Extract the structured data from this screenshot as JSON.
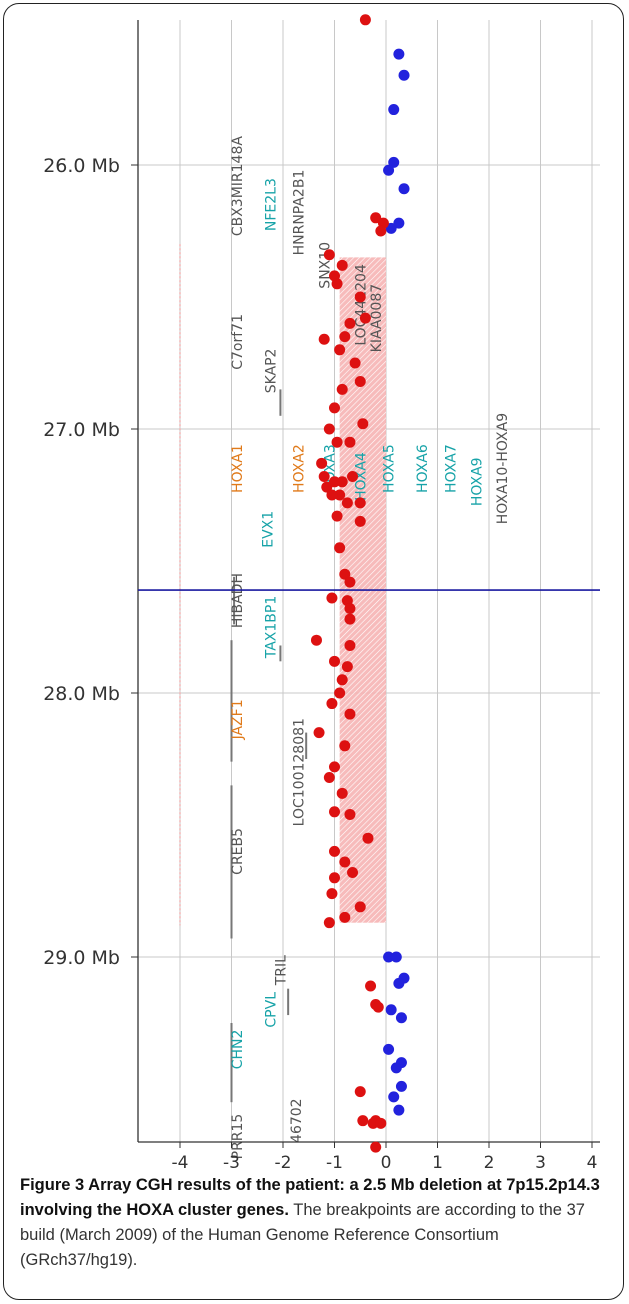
{
  "chart_data": {
    "type": "scatter",
    "title": "",
    "xlabel": "",
    "ylabel": "",
    "xlim": [
      -4.4,
      4.2
    ],
    "ylim_mb": [
      25.4,
      29.75
    ],
    "x_ticks": [
      -4,
      -3,
      -2,
      -1,
      0,
      1,
      2,
      3,
      4
    ],
    "x_tick_labels": [
      "-4",
      "-3",
      "-2",
      "-1",
      "0",
      "1",
      "2",
      "3",
      "4"
    ],
    "y_ticks": [
      26.0,
      27.0,
      28.0,
      29.0
    ],
    "y_tick_labels": [
      "26.0 Mb",
      "27.0 Mb",
      "28.0 Mb",
      "29.0 Mb"
    ],
    "grid": true,
    "colors": {
      "normal_probe": "#2222dd",
      "deleted_probe": "#dd1111",
      "deletion_region": "#f08a8a",
      "marker_line": "#1a1aa0",
      "gene_orange": "#e07a1a",
      "gene_teal": "#17a3a8",
      "gene_gray": "#555555",
      "threshold_line": "#f5b5b5"
    },
    "deletion_region": {
      "x_from": -0.9,
      "x_to": 0.0,
      "y_from_mb": 26.35,
      "y_to_mb": 28.87
    },
    "threshold_x": -4.0,
    "marker_line_mb": 27.61,
    "series": [
      {
        "color_key": "normal_probe",
        "points": [
          [
            0.25,
            25.58
          ],
          [
            0.35,
            25.66
          ],
          [
            0.15,
            25.79
          ],
          [
            0.15,
            25.99
          ],
          [
            0.05,
            26.02
          ],
          [
            0.35,
            26.09
          ],
          [
            0.25,
            26.22
          ],
          [
            0.1,
            26.24
          ],
          [
            0.05,
            29.0
          ],
          [
            0.2,
            29.0
          ],
          [
            0.35,
            29.08
          ],
          [
            0.25,
            29.1
          ],
          [
            0.1,
            29.2
          ],
          [
            0.3,
            29.23
          ],
          [
            0.05,
            29.35
          ],
          [
            0.3,
            29.4
          ],
          [
            0.2,
            29.42
          ],
          [
            0.3,
            29.49
          ],
          [
            0.15,
            29.53
          ],
          [
            0.25,
            29.58
          ]
        ]
      },
      {
        "color_key": "deleted_probe",
        "points": [
          [
            -0.4,
            25.45
          ],
          [
            -0.2,
            26.2
          ],
          [
            -0.05,
            26.22
          ],
          [
            -0.1,
            26.25
          ],
          [
            -1.1,
            26.34
          ],
          [
            -0.85,
            26.38
          ],
          [
            -1.0,
            26.42
          ],
          [
            -0.95,
            26.45
          ],
          [
            -0.5,
            26.5
          ],
          [
            -0.4,
            26.58
          ],
          [
            -0.7,
            26.6
          ],
          [
            -0.8,
            26.65
          ],
          [
            -1.2,
            26.66
          ],
          [
            -0.9,
            26.7
          ],
          [
            -0.6,
            26.75
          ],
          [
            -0.5,
            26.82
          ],
          [
            -0.85,
            26.85
          ],
          [
            -1.0,
            26.92
          ],
          [
            -0.45,
            26.98
          ],
          [
            -1.1,
            27.0
          ],
          [
            -0.95,
            27.05
          ],
          [
            -0.7,
            27.05
          ],
          [
            -1.25,
            27.13
          ],
          [
            -1.2,
            27.18
          ],
          [
            -1.0,
            27.2
          ],
          [
            -0.85,
            27.2
          ],
          [
            -0.65,
            27.18
          ],
          [
            -1.15,
            27.22
          ],
          [
            -0.9,
            27.25
          ],
          [
            -0.75,
            27.28
          ],
          [
            -1.05,
            27.25
          ],
          [
            -0.5,
            27.28
          ],
          [
            -0.95,
            27.33
          ],
          [
            -0.5,
            27.35
          ],
          [
            -0.9,
            27.45
          ],
          [
            -0.8,
            27.55
          ],
          [
            -0.7,
            27.58
          ],
          [
            -1.05,
            27.64
          ],
          [
            -0.75,
            27.65
          ],
          [
            -0.7,
            27.68
          ],
          [
            -0.7,
            27.72
          ],
          [
            -1.35,
            27.8
          ],
          [
            -0.7,
            27.82
          ],
          [
            -1.0,
            27.88
          ],
          [
            -0.75,
            27.9
          ],
          [
            -0.85,
            27.95
          ],
          [
            -0.9,
            28.0
          ],
          [
            -1.05,
            28.04
          ],
          [
            -0.7,
            28.08
          ],
          [
            -1.3,
            28.15
          ],
          [
            -0.8,
            28.2
          ],
          [
            -1.0,
            28.28
          ],
          [
            -1.1,
            28.32
          ],
          [
            -0.85,
            28.38
          ],
          [
            -1.0,
            28.45
          ],
          [
            -0.7,
            28.46
          ],
          [
            -0.35,
            28.55
          ],
          [
            -1.0,
            28.6
          ],
          [
            -0.8,
            28.64
          ],
          [
            -1.0,
            28.7
          ],
          [
            -0.65,
            28.68
          ],
          [
            -1.05,
            28.76
          ],
          [
            -0.5,
            28.81
          ],
          [
            -0.8,
            28.85
          ],
          [
            -1.1,
            28.87
          ],
          [
            -0.3,
            29.11
          ],
          [
            -0.2,
            29.18
          ],
          [
            -0.15,
            29.19
          ],
          [
            -0.5,
            29.51
          ],
          [
            -0.45,
            29.62
          ],
          [
            -0.2,
            29.62
          ],
          [
            -0.25,
            29.63
          ],
          [
            -0.1,
            29.63
          ],
          [
            -0.2,
            29.72
          ]
        ]
      }
    ],
    "gene_labels": [
      {
        "text": "CBX3MIR148A",
        "x": -2.8,
        "y_mb": 26.08,
        "color_key": "gene_gray"
      },
      {
        "text": "NFE2L3",
        "x": -2.15,
        "y_mb": 26.15,
        "color_key": "gene_teal"
      },
      {
        "text": "HNRNPA2B1",
        "x": -1.6,
        "y_mb": 26.18,
        "color_key": "gene_gray"
      },
      {
        "text": "SNX10",
        "x": -1.1,
        "y_mb": 26.38,
        "color_key": "gene_gray"
      },
      {
        "text": "LOC441204",
        "x": -0.4,
        "y_mb": 26.53,
        "color_key": "gene_gray"
      },
      {
        "text": "KIAA0087",
        "x": -0.1,
        "y_mb": 26.58,
        "color_key": "gene_gray"
      },
      {
        "text": "C7orf71",
        "x": -2.8,
        "y_mb": 26.67,
        "color_key": "gene_gray"
      },
      {
        "text": "SKAP2",
        "x": -2.15,
        "y_mb": 26.78,
        "color_key": "gene_gray"
      },
      {
        "text": "HOXA1",
        "x": -2.8,
        "y_mb": 27.15,
        "color_key": "gene_orange"
      },
      {
        "text": "HOXA2",
        "x": -1.6,
        "y_mb": 27.15,
        "color_key": "gene_orange"
      },
      {
        "text": "HOXA3",
        "x": -1.0,
        "y_mb": 27.15,
        "color_key": "gene_teal"
      },
      {
        "text": "HOXA4",
        "x": -0.4,
        "y_mb": 27.18,
        "color_key": "gene_teal"
      },
      {
        "text": "HOXA5",
        "x": 0.15,
        "y_mb": 27.15,
        "color_key": "gene_teal"
      },
      {
        "text": "HOXA6",
        "x": 0.8,
        "y_mb": 27.15,
        "color_key": "gene_teal"
      },
      {
        "text": "HOXA7",
        "x": 1.35,
        "y_mb": 27.15,
        "color_key": "gene_teal"
      },
      {
        "text": "HOXA9",
        "x": 1.85,
        "y_mb": 27.2,
        "color_key": "gene_teal"
      },
      {
        "text": "HOXA10-HOXA9",
        "x": 2.35,
        "y_mb": 27.15,
        "color_key": "gene_gray"
      },
      {
        "text": "EVX1",
        "x": -2.2,
        "y_mb": 27.38,
        "color_key": "gene_teal"
      },
      {
        "text": "HIBADH",
        "x": -2.8,
        "y_mb": 27.65,
        "color_key": "gene_gray"
      },
      {
        "text": "TAX1BP1",
        "x": -2.15,
        "y_mb": 27.75,
        "color_key": "gene_teal"
      },
      {
        "text": "JAZF1",
        "x": -2.8,
        "y_mb": 28.1,
        "color_key": "gene_orange"
      },
      {
        "text": "LOC100128081",
        "x": -1.6,
        "y_mb": 28.3,
        "color_key": "gene_gray"
      },
      {
        "text": "CREB5",
        "x": -2.8,
        "y_mb": 28.6,
        "color_key": "gene_gray"
      },
      {
        "text": "TRIL",
        "x": -1.95,
        "y_mb": 29.05,
        "color_key": "gene_gray"
      },
      {
        "text": "CPVL",
        "x": -2.15,
        "y_mb": 29.2,
        "color_key": "gene_teal"
      },
      {
        "text": "CHN2",
        "x": -2.8,
        "y_mb": 29.35,
        "color_key": "gene_teal"
      },
      {
        "text": "PRR15",
        "x": -2.8,
        "y_mb": 29.68,
        "color_key": "gene_gray"
      },
      {
        "text": "46702",
        "x": -1.65,
        "y_mb": 29.62,
        "color_key": "gene_gray"
      }
    ],
    "gene_bars": [
      {
        "x": -3.0,
        "y_from_mb": 27.8,
        "y_to_mb": 28.26
      },
      {
        "x": -3.0,
        "y_from_mb": 28.35,
        "y_to_mb": 28.93
      },
      {
        "x": -3.0,
        "y_from_mb": 29.25,
        "y_to_mb": 29.55
      },
      {
        "x": -1.9,
        "y_from_mb": 29.12,
        "y_to_mb": 29.22
      },
      {
        "x": -1.55,
        "y_from_mb": 28.15,
        "y_to_mb": 28.25
      },
      {
        "x": -2.05,
        "y_from_mb": 26.85,
        "y_to_mb": 26.95
      },
      {
        "x": -2.05,
        "y_from_mb": 27.82,
        "y_to_mb": 27.88
      },
      {
        "x": -2.95,
        "y_from_mb": 27.56,
        "y_to_mb": 27.74
      }
    ]
  },
  "caption": {
    "bold": "Figure 3 Array CGH results of the patient: a 2.5 Mb deletion at 7p15.2p14.3 involving the HOXA cluster genes.",
    "text": " The breakpoints are according to the 37 build (March 2009) of the Human Genome Reference Consortium (GRch37/hg19)."
  }
}
